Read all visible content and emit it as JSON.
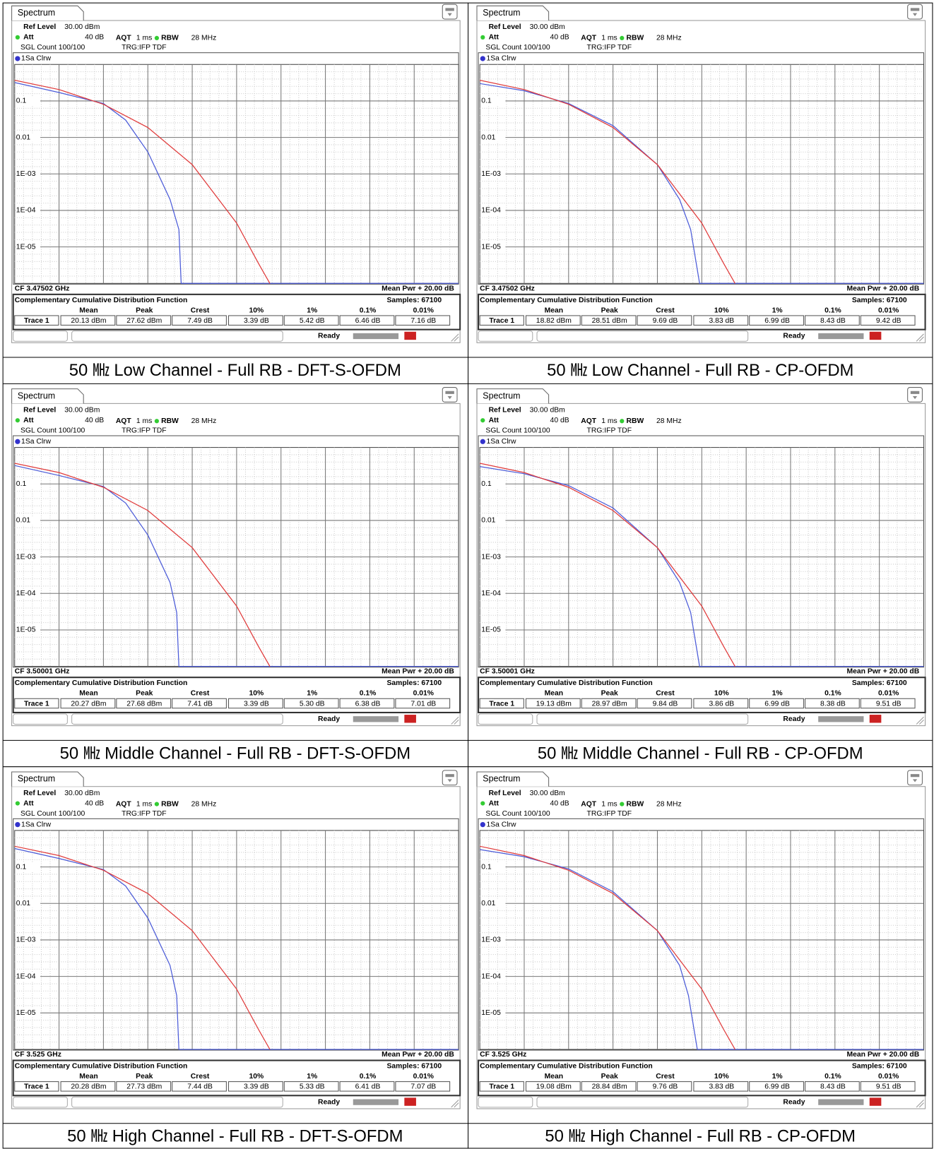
{
  "panels": [
    {
      "tab": "Spectrum",
      "ref_level_label": "Ref Level",
      "ref_level": "30.00 dBm",
      "att_label": "Att",
      "att": "40 dB",
      "aqt_label": "AQT",
      "aqt": "1 ms",
      "rbw_label": "RBW",
      "rbw": "28 MHz",
      "sgl_count": "SGL Count 100/100",
      "trigger": "TRG:IFP TDF",
      "trace_label": "1Sa Clrw",
      "chart": {
        "type": "line",
        "xlim": [
          0,
          20
        ],
        "x_divisions": 10,
        "ylim": [
          1e-06,
          1
        ],
        "log_y": true,
        "grid": true,
        "minor_grid": true,
        "yticks": [
          {
            "value": 0.1,
            "label": "0.1"
          },
          {
            "value": 0.01,
            "label": "0.01"
          },
          {
            "value": 0.001,
            "label": "1E-03"
          },
          {
            "value": 0.0001,
            "label": "1E-04"
          },
          {
            "value": 1e-05,
            "label": "1E-05"
          }
        ],
        "series": [
          {
            "color": "#4a5ad8",
            "x": [
              0,
              2,
              4,
              5,
              6,
              7,
              7.4,
              7.5,
              20
            ],
            "values": [
              0.32,
              0.17,
              0.085,
              0.03,
              0.004,
              0.0002,
              3e-05,
              1e-06,
              1e-06
            ]
          },
          {
            "color": "#e03a3a",
            "x": [
              0,
              2,
              4,
              6,
              8,
              10,
              11,
              11.5
            ],
            "values": [
              0.368,
              0.205,
              0.081,
              0.0187,
              0.0018,
              4.5e-05,
              3.4e-06,
              1e-06
            ]
          }
        ]
      },
      "cf": "CF 3.47502 GHz",
      "mean_pwr": "Mean Pwr + 20.00 dB",
      "ccdf_title": "Complementary Cumulative Distribution Function",
      "samples": "Samples: 67100",
      "table": {
        "header": [
          "Mean",
          "Peak",
          "Crest",
          "10%",
          "1%",
          "0.1%",
          "0.01%"
        ],
        "row": [
          "Trace 1",
          "20.13 dBm",
          "27.62 dBm",
          "7.49 dB",
          "3.39 dB",
          "5.42 dB",
          "6.46 dB",
          "7.16 dB"
        ]
      },
      "status": "Ready",
      "caption": "50 ㎒ Low Channel - Full RB - DFT-S-OFDM"
    },
    {
      "tab": "Spectrum",
      "ref_level_label": "Ref Level",
      "ref_level": "30.00 dBm",
      "att_label": "Att",
      "att": "40 dB",
      "aqt_label": "AQT",
      "aqt": "1 ms",
      "rbw_label": "RBW",
      "rbw": "28 MHz",
      "sgl_count": "SGL Count 100/100",
      "trigger": "TRG:IFP TDF",
      "trace_label": "1Sa Clrw",
      "chart": {
        "type": "line",
        "xlim": [
          0,
          20
        ],
        "x_divisions": 10,
        "ylim": [
          1e-06,
          1
        ],
        "log_y": true,
        "grid": true,
        "minor_grid": true,
        "yticks": [
          {
            "value": 0.1,
            "label": "0.1"
          },
          {
            "value": 0.01,
            "label": "0.01"
          },
          {
            "value": 0.001,
            "label": "1E-03"
          },
          {
            "value": 0.0001,
            "label": "1E-04"
          },
          {
            "value": 1e-05,
            "label": "1E-05"
          }
        ],
        "series": [
          {
            "color": "#4a5ad8",
            "x": [
              0,
              2,
              4,
              6,
              8,
              9,
              9.5,
              9.9,
              20
            ],
            "values": [
              0.3,
              0.19,
              0.085,
              0.021,
              0.0018,
              0.0002,
              3e-05,
              1e-06,
              1e-06
            ]
          },
          {
            "color": "#e03a3a",
            "x": [
              0,
              2,
              4,
              6,
              8,
              10,
              11,
              11.5
            ],
            "values": [
              0.368,
              0.205,
              0.081,
              0.0187,
              0.0018,
              4.5e-05,
              3.4e-06,
              1e-06
            ]
          }
        ]
      },
      "cf": "CF 3.47502 GHz",
      "mean_pwr": "Mean Pwr + 20.00 dB",
      "ccdf_title": "Complementary Cumulative Distribution Function",
      "samples": "Samples: 67100",
      "table": {
        "header": [
          "Mean",
          "Peak",
          "Crest",
          "10%",
          "1%",
          "0.1%",
          "0.01%"
        ],
        "row": [
          "Trace 1",
          "18.82 dBm",
          "28.51 dBm",
          "9.69 dB",
          "3.83 dB",
          "6.99 dB",
          "8.43 dB",
          "9.42 dB"
        ]
      },
      "status": "Ready",
      "caption": "50 ㎒ Low Channel - Full RB - CP-OFDM"
    },
    {
      "tab": "Spectrum",
      "ref_level_label": "Ref Level",
      "ref_level": "30.00 dBm",
      "att_label": "Att",
      "att": "40 dB",
      "aqt_label": "AQT",
      "aqt": "1 ms",
      "rbw_label": "RBW",
      "rbw": "28 MHz",
      "sgl_count": "SGL Count 100/100",
      "trigger": "TRG:IFP TDF",
      "trace_label": "1Sa Clrw",
      "chart": {
        "type": "line",
        "xlim": [
          0,
          20
        ],
        "x_divisions": 10,
        "ylim": [
          1e-06,
          1
        ],
        "log_y": true,
        "grid": true,
        "minor_grid": true,
        "yticks": [
          {
            "value": 0.1,
            "label": "0.1"
          },
          {
            "value": 0.01,
            "label": "0.01"
          },
          {
            "value": 0.001,
            "label": "1E-03"
          },
          {
            "value": 0.0001,
            "label": "1E-04"
          },
          {
            "value": 1e-05,
            "label": "1E-05"
          }
        ],
        "series": [
          {
            "color": "#4a5ad8",
            "x": [
              0,
              2,
              4,
              5,
              6,
              7,
              7.3,
              7.4,
              20
            ],
            "values": [
              0.32,
              0.17,
              0.085,
              0.03,
              0.004,
              0.0002,
              3e-05,
              1e-06,
              1e-06
            ]
          },
          {
            "color": "#e03a3a",
            "x": [
              0,
              2,
              4,
              6,
              8,
              10,
              11,
              11.5
            ],
            "values": [
              0.368,
              0.205,
              0.081,
              0.0187,
              0.0018,
              4.5e-05,
              3.4e-06,
              1e-06
            ]
          }
        ]
      },
      "cf": "CF 3.50001 GHz",
      "mean_pwr": "Mean Pwr + 20.00 dB",
      "ccdf_title": "Complementary Cumulative Distribution Function",
      "samples": "Samples: 67100",
      "table": {
        "header": [
          "Mean",
          "Peak",
          "Crest",
          "10%",
          "1%",
          "0.1%",
          "0.01%"
        ],
        "row": [
          "Trace 1",
          "20.27 dBm",
          "27.68 dBm",
          "7.41 dB",
          "3.39 dB",
          "5.30 dB",
          "6.38 dB",
          "7.01 dB"
        ]
      },
      "status": "Ready",
      "caption": "50 ㎒ Middle Channel - Full RB - DFT-S-OFDM"
    },
    {
      "tab": "Spectrum",
      "ref_level_label": "Ref Level",
      "ref_level": "30.00 dBm",
      "att_label": "Att",
      "att": "40 dB",
      "aqt_label": "AQT",
      "aqt": "1 ms",
      "rbw_label": "RBW",
      "rbw": "28 MHz",
      "sgl_count": "SGL Count 100/100",
      "trigger": "TRG:IFP TDF",
      "trace_label": "1Sa Clrw",
      "chart": {
        "type": "line",
        "xlim": [
          0,
          20
        ],
        "x_divisions": 10,
        "ylim": [
          1e-06,
          1
        ],
        "log_y": true,
        "grid": true,
        "minor_grid": true,
        "yticks": [
          {
            "value": 0.1,
            "label": "0.1"
          },
          {
            "value": 0.01,
            "label": "0.01"
          },
          {
            "value": 0.001,
            "label": "1E-03"
          },
          {
            "value": 0.0001,
            "label": "1E-04"
          },
          {
            "value": 1e-05,
            "label": "1E-05"
          }
        ],
        "series": [
          {
            "color": "#4a5ad8",
            "x": [
              0,
              2,
              4,
              6,
              8,
              9,
              9.5,
              9.9,
              20
            ],
            "values": [
              0.3,
              0.19,
              0.09,
              0.022,
              0.0018,
              0.0002,
              3e-05,
              1e-06,
              1e-06
            ]
          },
          {
            "color": "#e03a3a",
            "x": [
              0,
              2,
              4,
              6,
              8,
              10,
              11,
              11.5
            ],
            "values": [
              0.368,
              0.205,
              0.081,
              0.0187,
              0.0018,
              4.5e-05,
              3.4e-06,
              1e-06
            ]
          }
        ]
      },
      "cf": "CF 3.50001 GHz",
      "mean_pwr": "Mean Pwr + 20.00 dB",
      "ccdf_title": "Complementary Cumulative Distribution Function",
      "samples": "Samples: 67100",
      "table": {
        "header": [
          "Mean",
          "Peak",
          "Crest",
          "10%",
          "1%",
          "0.1%",
          "0.01%"
        ],
        "row": [
          "Trace 1",
          "19.13 dBm",
          "28.97 dBm",
          "9.84 dB",
          "3.86 dB",
          "6.99 dB",
          "8.38 dB",
          "9.51 dB"
        ]
      },
      "status": "Ready",
      "caption": "50 ㎒ Middle Channel - Full RB - CP-OFDM"
    },
    {
      "tab": "Spectrum",
      "ref_level_label": "Ref Level",
      "ref_level": "30.00 dBm",
      "att_label": "Att",
      "att": "40 dB",
      "aqt_label": "AQT",
      "aqt": "1 ms",
      "rbw_label": "RBW",
      "rbw": "28 MHz",
      "sgl_count": "SGL Count 100/100",
      "trigger": "TRG:IFP TDF",
      "trace_label": "1Sa Clrw",
      "chart": {
        "type": "line",
        "xlim": [
          0,
          20
        ],
        "x_divisions": 10,
        "ylim": [
          1e-06,
          1
        ],
        "log_y": true,
        "grid": true,
        "minor_grid": true,
        "yticks": [
          {
            "value": 0.1,
            "label": "0.1"
          },
          {
            "value": 0.01,
            "label": "0.01"
          },
          {
            "value": 0.001,
            "label": "1E-03"
          },
          {
            "value": 0.0001,
            "label": "1E-04"
          },
          {
            "value": 1e-05,
            "label": "1E-05"
          }
        ],
        "series": [
          {
            "color": "#4a5ad8",
            "x": [
              0,
              2,
              4,
              5,
              6,
              7,
              7.3,
              7.4,
              20
            ],
            "values": [
              0.32,
              0.17,
              0.085,
              0.03,
              0.004,
              0.0002,
              3e-05,
              1e-06,
              1e-06
            ]
          },
          {
            "color": "#e03a3a",
            "x": [
              0,
              2,
              4,
              6,
              8,
              10,
              11,
              11.5
            ],
            "values": [
              0.368,
              0.205,
              0.081,
              0.0187,
              0.0018,
              4.5e-05,
              3.4e-06,
              1e-06
            ]
          }
        ]
      },
      "cf": "CF 3.525 GHz",
      "mean_pwr": "Mean Pwr + 20.00 dB",
      "ccdf_title": "Complementary Cumulative Distribution Function",
      "samples": "Samples: 67100",
      "table": {
        "header": [
          "Mean",
          "Peak",
          "Crest",
          "10%",
          "1%",
          "0.1%",
          "0.01%"
        ],
        "row": [
          "Trace 1",
          "20.28 dBm",
          "27.73 dBm",
          "7.44 dB",
          "3.39 dB",
          "5.33 dB",
          "6.41 dB",
          "7.07 dB"
        ]
      },
      "status": "Ready",
      "caption": "50 ㎒ High Channel - Full RB - DFT-S-OFDM"
    },
    {
      "tab": "Spectrum",
      "ref_level_label": "Ref Level",
      "ref_level": "30.00 dBm",
      "att_label": "Att",
      "att": "40 dB",
      "aqt_label": "AQT",
      "aqt": "1 ms",
      "rbw_label": "RBW",
      "rbw": "28 MHz",
      "sgl_count": "SGL Count 100/100",
      "trigger": "TRG:IFP TDF",
      "trace_label": "1Sa Clrw",
      "chart": {
        "type": "line",
        "xlim": [
          0,
          20
        ],
        "x_divisions": 10,
        "ylim": [
          1e-06,
          1
        ],
        "log_y": true,
        "grid": true,
        "minor_grid": true,
        "yticks": [
          {
            "value": 0.1,
            "label": "0.1"
          },
          {
            "value": 0.01,
            "label": "0.01"
          },
          {
            "value": 0.001,
            "label": "1E-03"
          },
          {
            "value": 0.0001,
            "label": "1E-04"
          },
          {
            "value": 1e-05,
            "label": "1E-05"
          }
        ],
        "series": [
          {
            "color": "#4a5ad8",
            "x": [
              0,
              2,
              4,
              6,
              8,
              9,
              9.4,
              9.8,
              20
            ],
            "values": [
              0.3,
              0.19,
              0.088,
              0.021,
              0.0018,
              0.0002,
              3e-05,
              1e-06,
              1e-06
            ]
          },
          {
            "color": "#e03a3a",
            "x": [
              0,
              2,
              4,
              6,
              8,
              10,
              11,
              11.5
            ],
            "values": [
              0.368,
              0.205,
              0.081,
              0.0187,
              0.0018,
              4.5e-05,
              3.4e-06,
              1e-06
            ]
          }
        ]
      },
      "cf": "CF 3.525 GHz",
      "mean_pwr": "Mean Pwr + 20.00 dB",
      "ccdf_title": "Complementary Cumulative Distribution Function",
      "samples": "Samples: 67100",
      "table": {
        "header": [
          "Mean",
          "Peak",
          "Crest",
          "10%",
          "1%",
          "0.1%",
          "0.01%"
        ],
        "row": [
          "Trace 1",
          "19.08 dBm",
          "28.84 dBm",
          "9.76 dB",
          "3.83 dB",
          "6.99 dB",
          "8.43 dB",
          "9.51 dB"
        ]
      },
      "status": "Ready",
      "caption": "50 ㎒ High Channel - Full RB - CP-OFDM"
    }
  ]
}
